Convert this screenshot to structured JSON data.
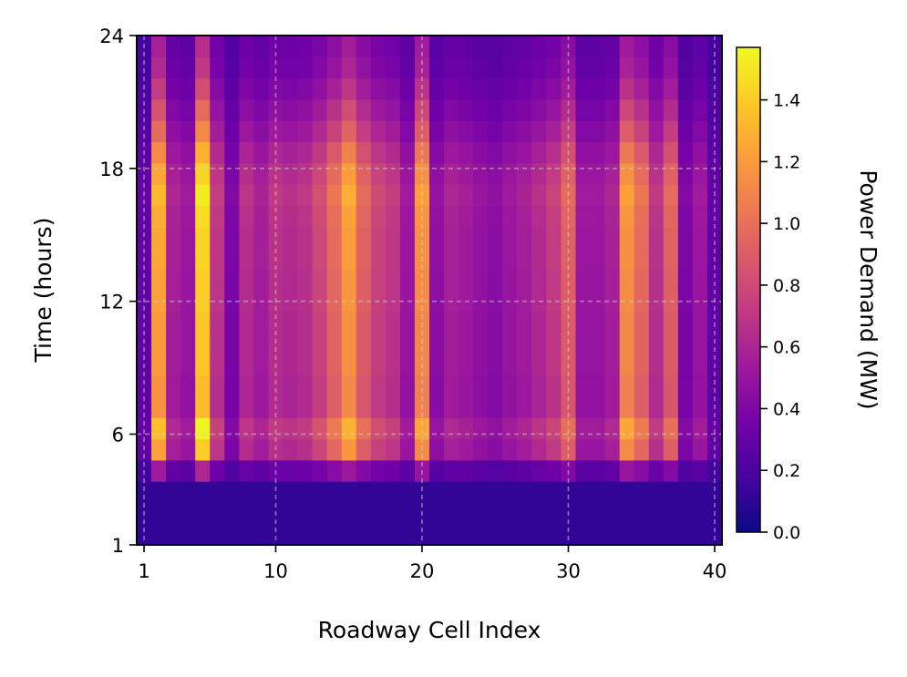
{
  "chart_data": {
    "type": "heatmap",
    "title": "",
    "xlabel": "Roadway Cell Index",
    "ylabel": "Time (hours)",
    "colorbar_label": "Power Demand (MW)",
    "colormap": "plasma",
    "x_ticks": [
      1,
      10,
      20,
      30,
      40
    ],
    "y_ticks": [
      1,
      6,
      12,
      18,
      24
    ],
    "colorbar_ticks": [
      "0.0",
      "0.2",
      "0.4",
      "0.6",
      "0.8",
      "1.0",
      "1.2",
      "1.4"
    ],
    "xlim": [
      0.5,
      40.5
    ],
    "ylim": [
      1,
      24
    ],
    "clim": [
      0,
      1.57
    ],
    "grid": true,
    "cells": [
      1,
      2,
      3,
      4,
      5,
      6,
      7,
      8,
      9,
      10,
      11,
      12,
      13,
      14,
      15,
      16,
      17,
      18,
      19,
      20,
      21,
      22,
      23,
      24,
      25,
      26,
      27,
      28,
      29,
      30,
      31,
      32,
      33,
      34,
      35,
      36,
      37,
      38,
      39,
      40
    ],
    "hours": [
      1,
      2,
      3,
      4,
      5,
      6,
      7,
      8,
      9,
      10,
      11,
      12,
      13,
      14,
      15,
      16,
      17,
      18,
      19,
      20,
      21,
      22,
      23,
      24
    ],
    "cell_peak_MW": [
      0.3,
      1.35,
      0.62,
      0.55,
      1.55,
      0.75,
      0.42,
      0.7,
      0.6,
      0.72,
      0.68,
      0.72,
      0.85,
      1.05,
      1.3,
      1.0,
      0.82,
      0.75,
      0.55,
      1.25,
      0.5,
      0.62,
      0.58,
      0.52,
      0.48,
      0.55,
      0.6,
      0.68,
      0.78,
      1.0,
      0.55,
      0.55,
      0.62,
      1.25,
      1.05,
      0.72,
      1.0,
      0.42,
      0.55,
      0.3
    ],
    "hourly_profile": [
      0.18,
      0.18,
      0.2,
      0.35,
      0.9,
      1.0,
      0.85,
      0.85,
      0.88,
      0.88,
      0.88,
      0.9,
      0.9,
      0.92,
      0.92,
      0.94,
      0.98,
      0.92,
      0.82,
      0.7,
      0.6,
      0.5,
      0.42,
      0.38
    ],
    "night_floor_MW": 0.1
  }
}
